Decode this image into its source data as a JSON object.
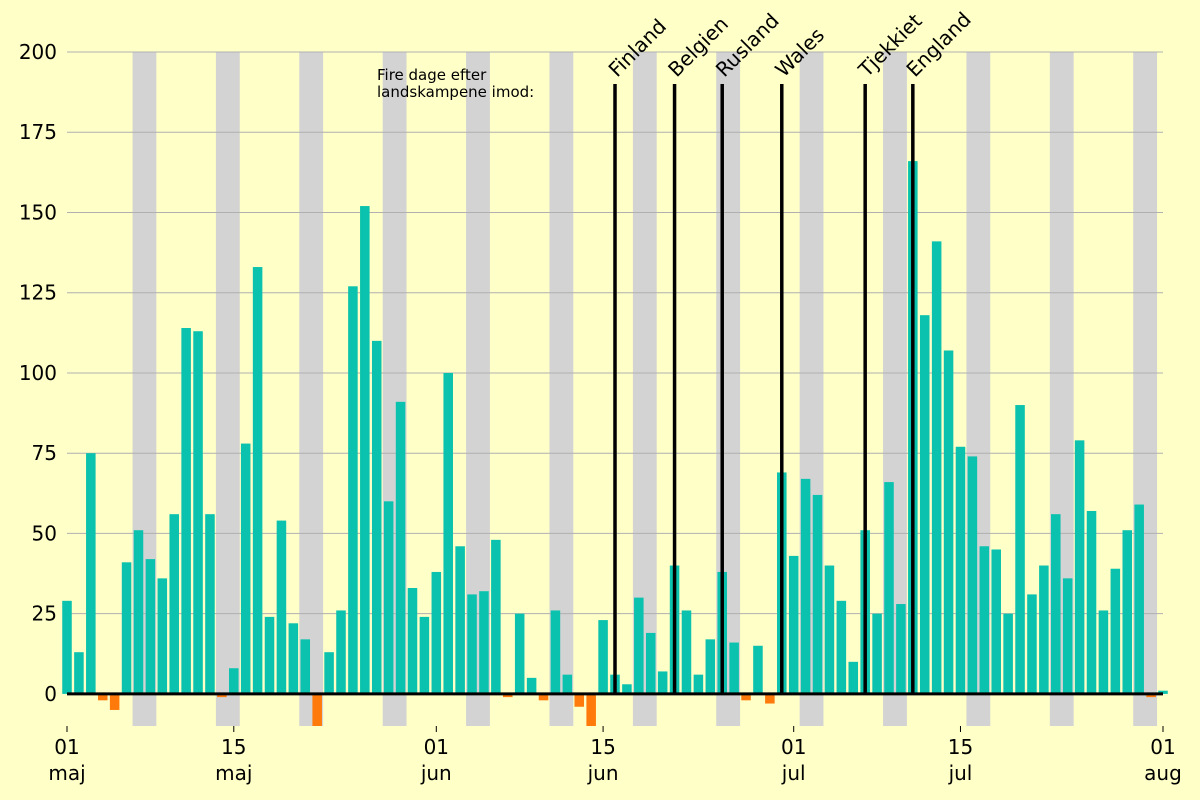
{
  "chart_data": {
    "type": "bar",
    "x_start": "2021-05-01",
    "x_end": "2021-08-01",
    "ylim": [
      -10,
      200
    ],
    "yticks": [
      0,
      25,
      50,
      75,
      100,
      125,
      150,
      175,
      200
    ],
    "grid": true,
    "x_ticks": [
      {
        "date": "2021-05-01",
        "day": "01",
        "month": "maj"
      },
      {
        "date": "2021-05-15",
        "day": "15",
        "month": "maj"
      },
      {
        "date": "2021-06-01",
        "day": "01",
        "month": "jun"
      },
      {
        "date": "2021-06-15",
        "day": "15",
        "month": "jun"
      },
      {
        "date": "2021-07-01",
        "day": "01",
        "month": "jul"
      },
      {
        "date": "2021-07-15",
        "day": "15",
        "month": "jul"
      },
      {
        "date": "2021-08-01",
        "day": "01",
        "month": "aug"
      }
    ],
    "values": [
      29,
      13,
      75,
      -2,
      -5,
      41,
      51,
      42,
      36,
      56,
      114,
      113,
      56,
      -1,
      8,
      78,
      133,
      24,
      54,
      22,
      17,
      -10,
      13,
      26,
      127,
      152,
      110,
      60,
      91,
      33,
      24,
      38,
      100,
      46,
      31,
      32,
      48,
      -1,
      25,
      5,
      -2,
      26,
      6,
      -4,
      -10,
      23,
      6,
      3,
      30,
      19,
      7,
      40,
      26,
      6,
      17,
      38,
      16,
      -2,
      15,
      -3,
      69,
      43,
      67,
      62,
      40,
      29,
      10,
      51,
      25,
      66,
      28,
      166,
      118,
      141,
      107,
      77,
      74,
      46,
      45,
      25,
      90,
      31,
      40,
      56,
      36,
      79,
      57,
      26,
      39,
      51,
      59,
      -1,
      1
    ],
    "weekend_start_dates": [
      "2021-05-05",
      "2021-05-12",
      "2021-05-19",
      "2021-05-26",
      "2021-06-02",
      "2021-06-09",
      "2021-06-16",
      "2021-06-23",
      "2021-06-30",
      "2021-07-07",
      "2021-07-14",
      "2021-07-21",
      "2021-07-28"
    ],
    "annotation_note": "Fire dage efter\nlandskampene imod:",
    "markers": [
      {
        "label": "Finland",
        "date": "2021-06-16"
      },
      {
        "label": "Belgien",
        "date": "2021-06-21"
      },
      {
        "label": "Rusland",
        "date": "2021-06-25"
      },
      {
        "label": "Wales",
        "date": "2021-06-30"
      },
      {
        "label": "Tjekkiet",
        "date": "2021-07-07"
      },
      {
        "label": "England",
        "date": "2021-07-11"
      }
    ],
    "colors": {
      "positive": "#0ac2ad",
      "negative": "#ff7a0a",
      "weekend": "#d3d3d3",
      "background": "#ffffc8",
      "grid": "#b0b0b0",
      "marker": "#000000"
    }
  }
}
